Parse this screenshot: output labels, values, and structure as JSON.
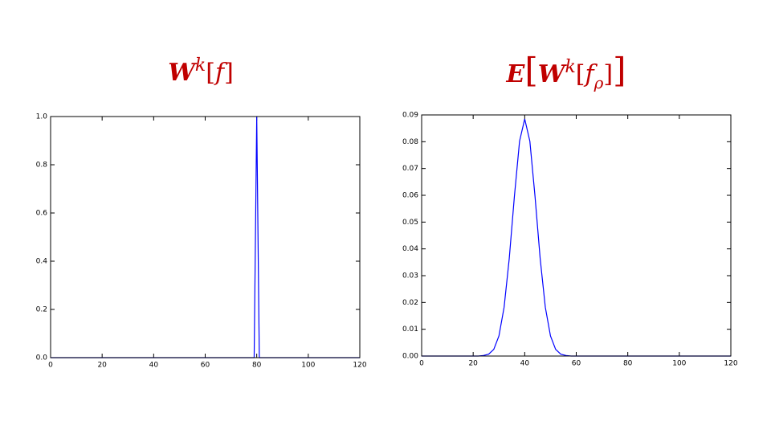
{
  "chart_data": [
    {
      "type": "line",
      "title_parts": [
        {
          "text": "W",
          "style": "bold-italic"
        },
        {
          "text": "k",
          "style": "italic",
          "shift": "sup"
        },
        {
          "text": "[",
          "style": "normal"
        },
        {
          "text": "f",
          "style": "italic"
        },
        {
          "text": "]",
          "style": "normal"
        }
      ],
      "x": [
        0,
        79,
        80,
        81,
        120
      ],
      "series": [
        {
          "color": "#0000ff",
          "values": [
            0,
            0,
            1,
            0,
            0
          ]
        }
      ],
      "xlim": [
        0,
        120
      ],
      "xticks": [
        0,
        20,
        40,
        60,
        80,
        100,
        120
      ],
      "ylim": [
        0,
        1
      ],
      "yticks": [
        {
          "value": 0,
          "label": "0.0"
        },
        0.2,
        0.4,
        0.6,
        0.8,
        {
          "value": 1,
          "label": "1.0"
        }
      ]
    },
    {
      "type": "line",
      "title_parts": [
        {
          "text": "E",
          "style": "bold-italic"
        },
        {
          "text": "[",
          "style": "large"
        },
        {
          "text": "W",
          "style": "bold-italic"
        },
        {
          "text": "k",
          "style": "italic",
          "shift": "sup"
        },
        {
          "text": "[",
          "style": "normal"
        },
        {
          "text": "f",
          "style": "italic"
        },
        {
          "text": "ρ",
          "style": "italic",
          "shift": "sub"
        },
        {
          "text": "]",
          "style": "normal"
        },
        {
          "text": "]",
          "style": "large"
        }
      ],
      "x": [
        0,
        20,
        22,
        24,
        26,
        28,
        30,
        32,
        34,
        36,
        38,
        40,
        42,
        44,
        46,
        48,
        50,
        52,
        54,
        56,
        58,
        60,
        120
      ],
      "series": [
        {
          "color": "#0000ff",
          "values": [
            0,
            0,
            0,
            0.0002,
            0.0007,
            0.0025,
            0.0075,
            0.0182,
            0.0364,
            0.0596,
            0.0802,
            0.0885,
            0.0802,
            0.0596,
            0.0364,
            0.0182,
            0.0075,
            0.0025,
            0.0007,
            0.0002,
            0,
            0,
            0
          ]
        }
      ],
      "xlim": [
        0,
        120
      ],
      "xticks": [
        0,
        20,
        40,
        60,
        80,
        100,
        120
      ],
      "ylim": [
        0,
        0.09
      ],
      "yticks": [
        {
          "value": 0,
          "label": "0.00"
        },
        0.01,
        0.02,
        0.03,
        0.04,
        0.05,
        0.06,
        0.07,
        0.08,
        0.09
      ]
    }
  ]
}
